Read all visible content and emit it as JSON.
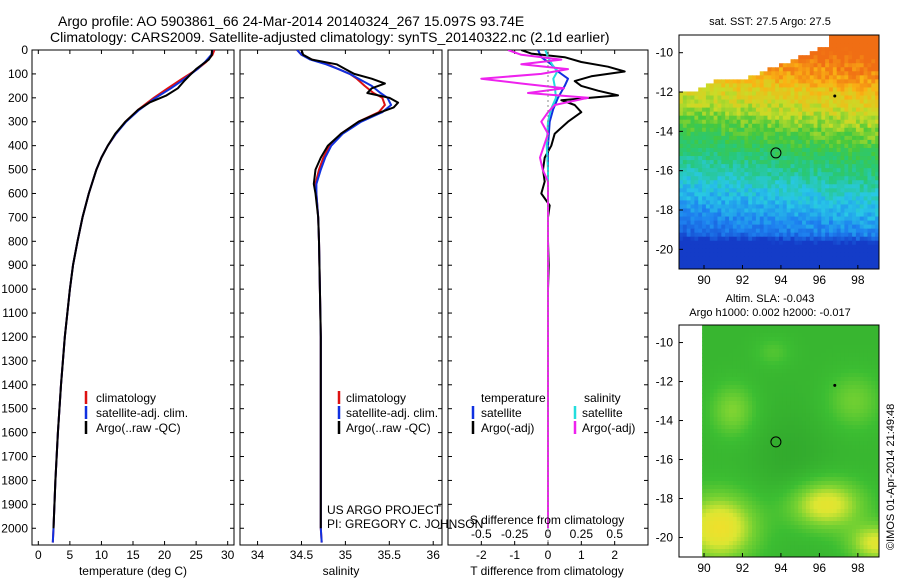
{
  "header": {
    "title1": "Argo profile: AO 5903861_66 24-Mar-2014 20140324_267 15.097S 93.74E",
    "title2": "Climatology: CARS2009. Satellite-adjusted climatology: synTS_20140322.nc (2.1d earlier)"
  },
  "colors": {
    "climatology": "#dd1111",
    "satellite_adj": "#1030e0",
    "argo": "#000000",
    "sal_satellite": "#22dddd",
    "sal_argo": "#ee22ee"
  },
  "chart_data": [
    {
      "type": "line",
      "name": "temperature",
      "title": "",
      "xlabel": "temperature (deg C)",
      "ylabel": "",
      "xlim": [
        -1,
        31
      ],
      "ylim": [
        2070,
        0
      ],
      "xticks": [
        "0",
        "5",
        "10",
        "15",
        "20",
        "25",
        "30"
      ],
      "xtick_values": [
        0,
        5,
        10,
        15,
        20,
        25,
        30
      ],
      "yticks": [
        "0",
        "100",
        "200",
        "300",
        "400",
        "500",
        "600",
        "700",
        "800",
        "900",
        "1000",
        "1100",
        "1200",
        "1300",
        "1400",
        "1500",
        "1600",
        "1700",
        "1800",
        "1900",
        "2000"
      ],
      "ytick_values": [
        0,
        100,
        200,
        300,
        400,
        500,
        600,
        700,
        800,
        900,
        1000,
        1100,
        1200,
        1300,
        1400,
        1500,
        1600,
        1700,
        1800,
        1900,
        2000
      ],
      "legend": [
        "climatology",
        "satellite-adj. clim.",
        "Argo(..raw -QC)"
      ],
      "series": [
        {
          "name": "climatology",
          "depth": [
            0,
            20,
            50,
            80,
            120,
            160,
            200,
            250,
            300,
            350,
            400,
            450,
            500,
            600,
            700,
            800,
            900,
            1000,
            1200,
            1400,
            1600,
            1800,
            2000,
            2060
          ],
          "values": [
            27.9,
            27.6,
            26.6,
            25.2,
            22.8,
            20.5,
            18.3,
            15.8,
            13.8,
            12.3,
            11.0,
            10.0,
            9.2,
            8.0,
            7.0,
            6.2,
            5.5,
            5.0,
            4.2,
            3.6,
            3.1,
            2.7,
            2.4,
            2.3
          ]
        },
        {
          "name": "satellite-adj. clim.",
          "depth": [
            0,
            20,
            50,
            80,
            120,
            160,
            200,
            250,
            300,
            350,
            400,
            450,
            500,
            600,
            700,
            800,
            900,
            1000,
            1200,
            1400,
            1600,
            1800,
            2000,
            2060
          ],
          "values": [
            27.6,
            27.4,
            26.4,
            25.2,
            23.2,
            21.0,
            18.6,
            16.0,
            13.9,
            12.3,
            11.0,
            10.0,
            9.2,
            8.0,
            7.0,
            6.2,
            5.5,
            5.0,
            4.2,
            3.6,
            3.1,
            2.7,
            2.4,
            2.3
          ]
        },
        {
          "name": "Argo(..raw -QC)",
          "depth": [
            0,
            20,
            40,
            60,
            80,
            100,
            130,
            160,
            190,
            220,
            250,
            300,
            350,
            400,
            450,
            500,
            600,
            700,
            800,
            900,
            1000,
            1200,
            1400,
            1600,
            1800,
            2000
          ],
          "values": [
            27.5,
            27.5,
            27.0,
            26.0,
            25.0,
            24.2,
            23.1,
            22.1,
            20.3,
            17.6,
            15.8,
            13.8,
            12.2,
            11.0,
            10.0,
            9.2,
            8.0,
            7.0,
            6.2,
            5.5,
            5.0,
            4.2,
            3.6,
            3.1,
            2.7,
            2.4
          ]
        }
      ]
    },
    {
      "type": "line",
      "name": "salinity",
      "xlabel": "salinity",
      "xlim": [
        33.8,
        36.1
      ],
      "ylim": [
        2070,
        0
      ],
      "xticks": [
        "34",
        "34.5",
        "35",
        "35.5",
        "36"
      ],
      "xtick_values": [
        34,
        34.5,
        35,
        35.5,
        36
      ],
      "legend": [
        "climatology",
        "satellite-adj. clim.",
        "Argo(..raw -QC)"
      ],
      "annotation": [
        "US ARGO PROJECT",
        "PI: GREGORY C. JOHNSON"
      ],
      "series": [
        {
          "name": "climatology",
          "depth": [
            0,
            20,
            40,
            60,
            80,
            100,
            120,
            150,
            180,
            200,
            230,
            260,
            300,
            350,
            400,
            450,
            500,
            560,
            600,
            700,
            800,
            1000,
            1200,
            1500,
            2000,
            2060
          ],
          "values": [
            34.45,
            34.5,
            34.62,
            34.8,
            34.92,
            35.05,
            35.13,
            35.22,
            35.32,
            35.42,
            35.45,
            35.38,
            35.15,
            34.95,
            34.82,
            34.75,
            34.7,
            34.66,
            34.67,
            34.69,
            34.7,
            34.71,
            34.72,
            34.72,
            34.72,
            34.73
          ]
        },
        {
          "name": "satellite-adj. clim.",
          "depth": [
            0,
            20,
            40,
            60,
            80,
            100,
            120,
            150,
            180,
            200,
            230,
            260,
            300,
            350,
            400,
            450,
            500,
            560,
            600,
            700,
            800,
            1000,
            1200,
            1500,
            2000,
            2060
          ],
          "values": [
            34.45,
            34.5,
            34.6,
            34.78,
            34.92,
            35.05,
            35.15,
            35.3,
            35.4,
            35.48,
            35.52,
            35.42,
            35.18,
            34.97,
            34.84,
            34.77,
            34.72,
            34.67,
            34.67,
            34.69,
            34.7,
            34.71,
            34.72,
            34.72,
            34.72,
            34.73
          ]
        },
        {
          "name": "Argo(..raw -QC)",
          "depth": [
            0,
            20,
            40,
            60,
            80,
            100,
            120,
            140,
            160,
            180,
            200,
            220,
            240,
            260,
            300,
            350,
            400,
            450,
            500,
            560,
            600,
            700,
            800,
            1000,
            1200,
            1500,
            2000
          ],
          "values": [
            34.5,
            34.52,
            34.62,
            34.9,
            35.0,
            35.1,
            35.3,
            35.45,
            35.3,
            35.25,
            35.5,
            35.6,
            35.55,
            35.4,
            35.15,
            34.95,
            34.8,
            34.72,
            34.66,
            34.64,
            34.66,
            34.69,
            34.7,
            34.71,
            34.72,
            34.72,
            34.72
          ]
        }
      ]
    },
    {
      "type": "line",
      "name": "difference",
      "xlabel": "T difference from climatology",
      "xlabel2": "S difference from climatology",
      "xlim": [
        -3,
        3
      ],
      "ylim": [
        2070,
        0
      ],
      "xticks": [
        "-2",
        "-1",
        "0",
        "1",
        "2"
      ],
      "xtick_values": [
        -2,
        -1,
        0,
        1,
        2
      ],
      "xticks2": [
        "-0.5",
        "-0.25",
        "0",
        "0.25",
        "0.5"
      ],
      "xtick2_values": [
        -0.5,
        -0.25,
        0,
        0.25,
        0.5
      ],
      "legend_headers": [
        "temperature",
        "salinity"
      ],
      "legend": [
        "satellite",
        "Argo(-adj)",
        "satellite",
        "Argo(-adj)"
      ],
      "series": [
        {
          "name": "T satellite",
          "depth": [
            0,
            30,
            60,
            90,
            120,
            150,
            200,
            250,
            300,
            400,
            500,
            600,
            800,
            1000,
            1500,
            2000
          ],
          "values": [
            -0.3,
            -0.2,
            0.1,
            0.3,
            0.6,
            0.5,
            0.3,
            0.15,
            0.05,
            0.0,
            0.0,
            0.0,
            0.0,
            0.0,
            0.0,
            0.0
          ]
        },
        {
          "name": "T Argo",
          "depth": [
            0,
            15,
            30,
            50,
            70,
            90,
            110,
            130,
            150,
            170,
            190,
            210,
            230,
            260,
            300,
            350,
            400,
            450,
            500,
            550,
            600,
            650,
            700,
            800,
            900,
            1000,
            1200,
            1500,
            2000
          ],
          "values": [
            -0.8,
            -0.5,
            0.5,
            1.0,
            1.8,
            2.3,
            1.3,
            0.8,
            1.0,
            1.5,
            2.1,
            0.4,
            0.8,
            1.0,
            0.6,
            0.2,
            0.1,
            -0.1,
            -0.15,
            -0.1,
            -0.2,
            0.05,
            0.0,
            0.0,
            0.02,
            0.0,
            0.0,
            0.0,
            0.0
          ]
        },
        {
          "name": "S satellite",
          "depth": [
            0,
            30,
            60,
            90,
            120,
            150,
            200,
            250,
            300,
            400,
            500,
            600,
            800,
            1000,
            1500,
            2000
          ],
          "values": [
            -0.02,
            0.0,
            0.03,
            0.07,
            0.04,
            0.05,
            0.06,
            0.02,
            0.0,
            -0.01,
            0.0,
            0.0,
            0.0,
            0.0,
            0.0,
            0.0
          ]
        },
        {
          "name": "S Argo",
          "depth": [
            0,
            20,
            40,
            60,
            80,
            100,
            120,
            140,
            160,
            180,
            200,
            230,
            260,
            300,
            350,
            400,
            450,
            500,
            550,
            600,
            700,
            800,
            1000,
            2000
          ],
          "values": [
            -0.3,
            -0.2,
            0.1,
            -0.2,
            0.15,
            -0.05,
            -0.5,
            -0.2,
            0.12,
            -0.15,
            0.3,
            0.05,
            0.0,
            -0.05,
            0.0,
            -0.03,
            -0.06,
            -0.04,
            0.0,
            0.0,
            0.0,
            0.0,
            0.0,
            0.0
          ]
        }
      ]
    },
    {
      "type": "heatmap",
      "name": "sst_map",
      "title": "sat. SST: 27.5 Argo: 27.5",
      "xticks": [
        "90",
        "92",
        "94",
        "96",
        "98"
      ],
      "xtick_values": [
        90,
        92,
        94,
        96,
        98
      ],
      "yticks": [
        "-10",
        "-12",
        "-14",
        "-16",
        "-18",
        "-20"
      ],
      "ytick_values": [
        -10,
        -12,
        -14,
        -16,
        -18,
        -20
      ],
      "xlim": [
        88.7,
        99.1
      ],
      "ylim": [
        -21.0,
        -9.1
      ],
      "argo_position": [
        93.74,
        -15.097
      ],
      "marker2": [
        96.8,
        -12.2
      ]
    },
    {
      "type": "heatmap",
      "name": "sla_map",
      "title": "Altim. SLA: -0.043",
      "subtitle": "Argo h1000: 0.002 h2000: -0.017",
      "xticks": [
        "90",
        "92",
        "94",
        "96",
        "98"
      ],
      "xtick_values": [
        90,
        92,
        94,
        96,
        98
      ],
      "yticks": [
        "-10",
        "-12",
        "-14",
        "-16",
        "-18",
        "-20"
      ],
      "ytick_values": [
        -10,
        -12,
        -14,
        -16,
        -18,
        -20
      ],
      "xlim": [
        88.7,
        99.1
      ],
      "ylim": [
        -21.0,
        -9.1
      ],
      "argo_position": [
        93.74,
        -15.097
      ],
      "marker2": [
        96.8,
        -12.2
      ]
    }
  ],
  "footer": {
    "stamp": "©IMOS 01-Apr-2014 21:49:48"
  }
}
